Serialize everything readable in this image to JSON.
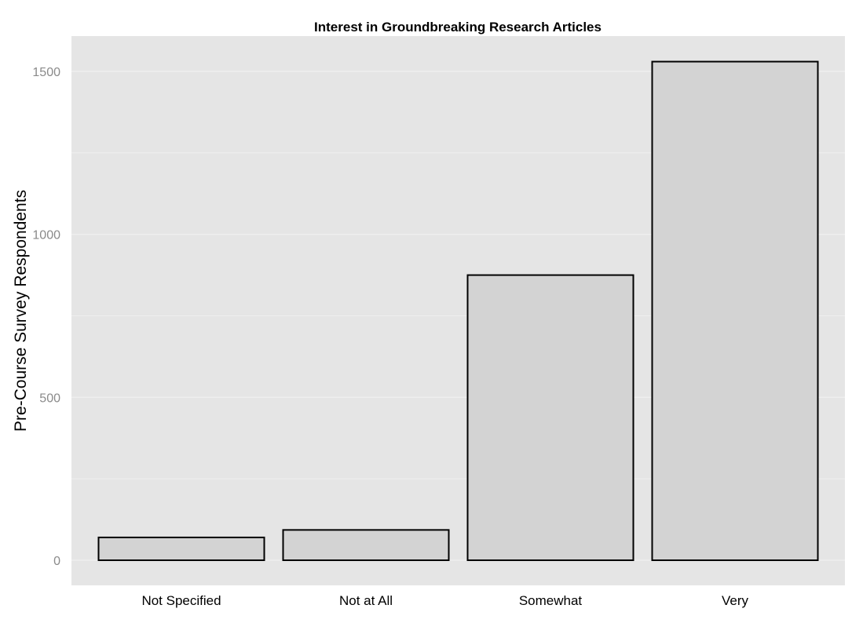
{
  "chart_data": {
    "type": "bar",
    "title": "Interest in Groundbreaking Research Articles",
    "xlabel": "",
    "ylabel": "Pre-Course Survey Respondents",
    "categories": [
      "Not Specified",
      "Not at All",
      "Somewhat",
      "Very"
    ],
    "values": [
      70,
      93,
      875,
      1530
    ],
    "ylim": [
      -75,
      1610
    ],
    "yticks": [
      0,
      500,
      1000,
      1500
    ],
    "ytick_labels": [
      "0",
      "500",
      "1000",
      "1500"
    ],
    "grid": true,
    "legend": "none",
    "colors": {
      "panel_background": "#e5e5e5",
      "bar_fill": "#d3d3d3",
      "bar_outline": "#000000",
      "grid_line": "#f0f0f0",
      "tick_label": "#8a8a8a"
    }
  }
}
